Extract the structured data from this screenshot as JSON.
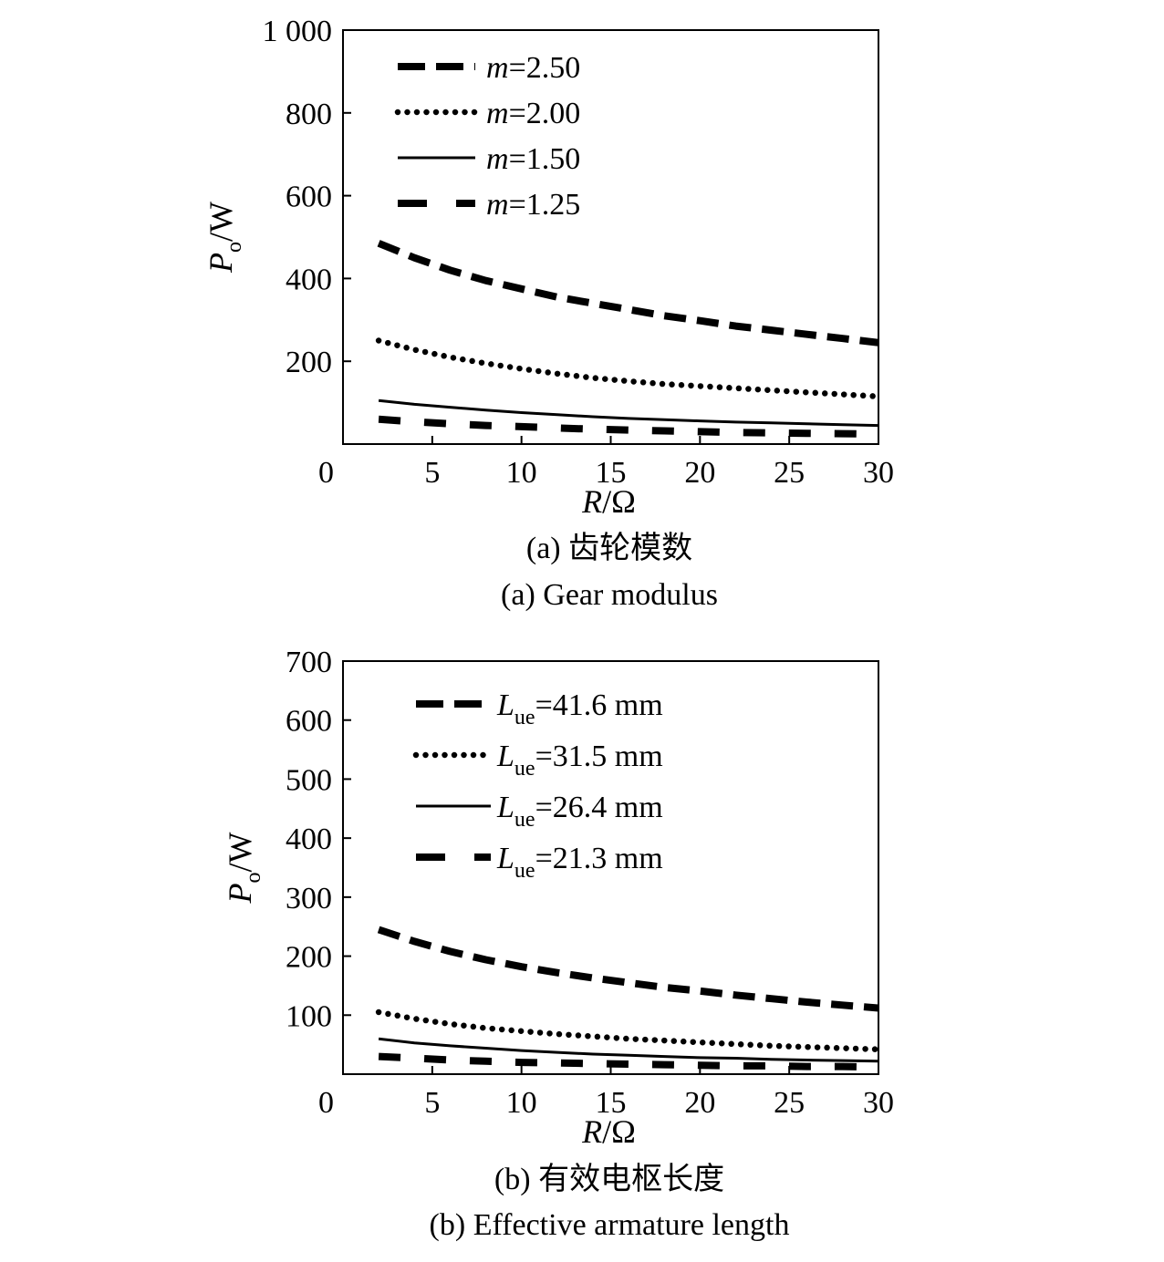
{
  "chart_data": [
    {
      "type": "line",
      "x_label_var": "R",
      "x_label_unit": "/Ω",
      "y_label_var": "P",
      "y_label_sub": "o",
      "y_label_unit": "/W",
      "xlim": [
        0,
        30
      ],
      "ylim": [
        0,
        1000
      ],
      "x_ticks": [
        5,
        10,
        15,
        20,
        25,
        30
      ],
      "x_tick_labels": [
        "5",
        "10",
        "15",
        "20",
        "25",
        "30"
      ],
      "y_ticks": [
        0,
        200,
        400,
        600,
        800,
        1000
      ],
      "y_tick_labels": [
        "0",
        "200",
        "400",
        "600",
        "800",
        "1 000"
      ],
      "grid": false,
      "legend_position": "top-left",
      "caption_zh": "(a) 齿轮模数",
      "caption_en": "(a) Gear modulus",
      "x": [
        2,
        4,
        6,
        8,
        10,
        12,
        14,
        16,
        18,
        20,
        22,
        24,
        26,
        28,
        30
      ],
      "series": [
        {
          "legend_var": "m",
          "legend_rest": "=2.50",
          "style": "longdash",
          "values": [
            485,
            450,
            420,
            395,
            375,
            355,
            340,
            325,
            310,
            298,
            285,
            275,
            265,
            255,
            245
          ]
        },
        {
          "legend_var": "m",
          "legend_rest": "=2.00",
          "style": "dotted",
          "values": [
            250,
            228,
            210,
            195,
            182,
            170,
            160,
            152,
            145,
            140,
            135,
            130,
            125,
            120,
            115
          ]
        },
        {
          "legend_var": "m",
          "legend_rest": "=1.50",
          "style": "solid",
          "values": [
            105,
            96,
            89,
            82,
            76,
            71,
            66,
            62,
            59,
            56,
            53,
            51,
            49,
            47,
            45
          ]
        },
        {
          "legend_var": "m",
          "legend_rest": "=1.25",
          "style": "sparsedash",
          "values": [
            60,
            54,
            49,
            45,
            42,
            39,
            36,
            34,
            32,
            30,
            28,
            27,
            26,
            25,
            24
          ]
        }
      ]
    },
    {
      "type": "line",
      "x_label_var": "R",
      "x_label_unit": "/Ω",
      "y_label_var": "P",
      "y_label_sub": "o",
      "y_label_unit": "/W",
      "xlim": [
        0,
        30
      ],
      "ylim": [
        0,
        700
      ],
      "x_ticks": [
        5,
        10,
        15,
        20,
        25,
        30
      ],
      "x_tick_labels": [
        "5",
        "10",
        "15",
        "20",
        "25",
        "30"
      ],
      "y_ticks": [
        0,
        100,
        200,
        300,
        400,
        500,
        600,
        700
      ],
      "y_tick_labels": [
        "0",
        "100",
        "200",
        "300",
        "400",
        "500",
        "600",
        "700"
      ],
      "grid": false,
      "legend_position": "top-left",
      "caption_zh": "(b) 有效电枢长度",
      "caption_en": "(b) Effective armature length",
      "x": [
        2,
        4,
        6,
        8,
        10,
        12,
        14,
        16,
        18,
        20,
        22,
        24,
        26,
        28,
        30
      ],
      "series": [
        {
          "legend_var": "L",
          "legend_sub": "ue",
          "legend_rest": "=41.6 mm",
          "style": "longdash",
          "values": [
            245,
            225,
            208,
            194,
            182,
            172,
            163,
            155,
            147,
            141,
            134,
            128,
            122,
            117,
            112
          ]
        },
        {
          "legend_var": "L",
          "legend_sub": "ue",
          "legend_rest": "=31.5 mm",
          "style": "dotted",
          "values": [
            105,
            94,
            85,
            78,
            73,
            68,
            64,
            60,
            57,
            54,
            51,
            48,
            46,
            44,
            42
          ]
        },
        {
          "legend_var": "L",
          "legend_sub": "ue",
          "legend_rest": "=26.4 mm",
          "style": "solid",
          "values": [
            60,
            53,
            48,
            44,
            40,
            37,
            34,
            32,
            30,
            28,
            27,
            25,
            24,
            23,
            22
          ]
        },
        {
          "legend_var": "L",
          "legend_sub": "ue",
          "legend_rest": "=21.3 mm",
          "style": "sparsedash",
          "values": [
            30,
            27,
            24,
            22,
            20,
            19,
            18,
            17,
            16,
            15,
            14,
            14,
            13,
            13,
            12
          ]
        }
      ]
    }
  ]
}
